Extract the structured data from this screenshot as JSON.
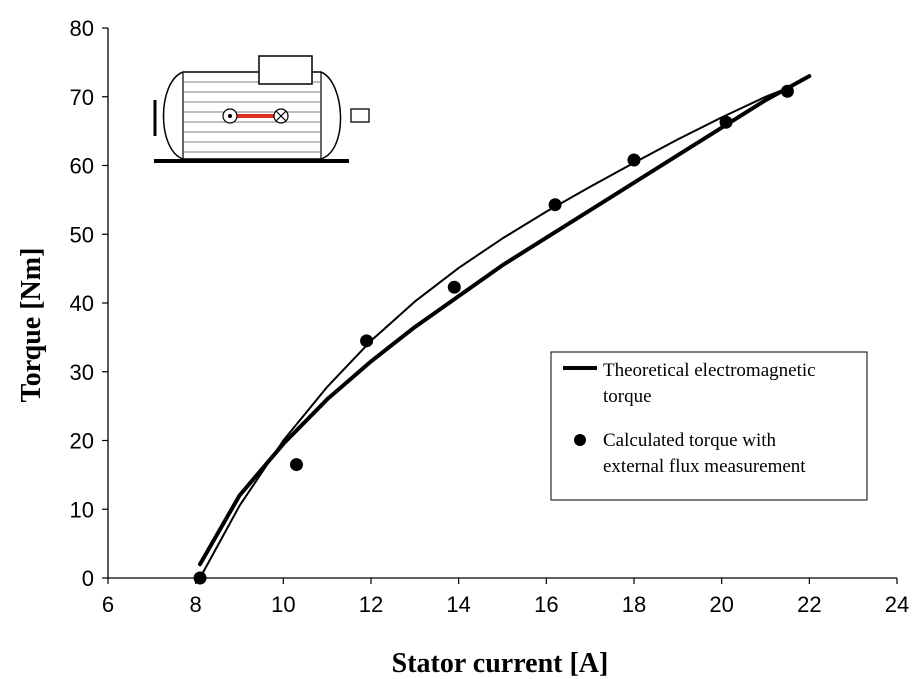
{
  "chart_data": {
    "type": "scatter",
    "title": "",
    "xlabel": "Stator current [A]",
    "ylabel": "Torque [Nm]",
    "xlim": [
      6,
      24
    ],
    "ylim": [
      0,
      80
    ],
    "x_ticks": [
      6,
      8,
      10,
      12,
      14,
      16,
      18,
      20,
      22,
      24
    ],
    "y_ticks": [
      0,
      10,
      20,
      30,
      40,
      50,
      60,
      70,
      80
    ],
    "grid": false,
    "legend_position": "center-right",
    "series": [
      {
        "name": "Theoretical electromagnetic torque",
        "style": "thick-line",
        "color": "#000000",
        "x": [
          8.1,
          9.0,
          10.0,
          11.0,
          12.0,
          13.0,
          14.0,
          15.0,
          16.0,
          17.0,
          18.0,
          19.0,
          20.0,
          21.0,
          22.0
        ],
        "y": [
          2.0,
          12.0,
          19.5,
          26.0,
          31.5,
          36.5,
          41.0,
          45.5,
          49.5,
          53.5,
          57.5,
          61.5,
          65.5,
          69.5,
          73.0
        ]
      },
      {
        "name": "Calculated torque with external flux measurement",
        "style": "markers",
        "color": "#000000",
        "x": [
          8.1,
          10.3,
          11.9,
          13.9,
          16.2,
          18.0,
          20.1,
          21.5
        ],
        "y": [
          0.0,
          16.5,
          34.5,
          42.3,
          54.3,
          60.8,
          66.3,
          70.8
        ]
      },
      {
        "name": "",
        "style": "thin-line",
        "color": "#000000",
        "x": [
          8.1,
          9.0,
          10.0,
          11.0,
          12.0,
          13.0,
          14.0,
          15.0,
          16.0,
          17.0,
          18.0,
          19.0,
          20.0,
          21.0,
          21.6
        ],
        "y": [
          0.0,
          10.5,
          20.0,
          27.8,
          34.5,
          40.2,
          45.1,
          49.4,
          53.3,
          56.9,
          60.4,
          63.8,
          67.0,
          70.0,
          71.5
        ]
      }
    ],
    "legend": [
      {
        "label": "Theoretical electromagnetic torque",
        "marker": "line"
      },
      {
        "label": "Calculated torque with external flux measurement",
        "marker": "dot"
      }
    ]
  },
  "colors": {
    "axis": "#000000",
    "accent_wire": "#e03020",
    "motor_fill": "#ffffff"
  },
  "inset_icon": "motor-sketch-icon"
}
